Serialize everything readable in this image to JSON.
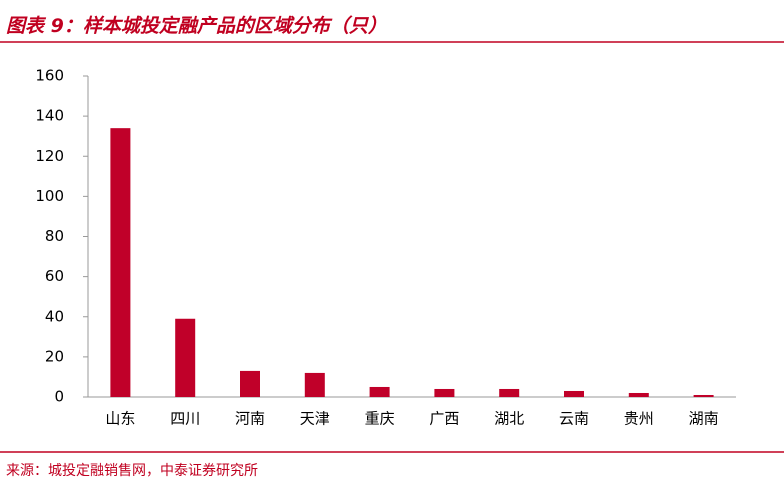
{
  "chart_data": {
    "type": "bar",
    "title": "图表 9：样本城投定融产品的区域分布（只）",
    "source": "来源：城投定融销售网，中泰证券研究所",
    "categories": [
      "山东",
      "四川",
      "河南",
      "天津",
      "重庆",
      "广西",
      "湖北",
      "云南",
      "贵州",
      "湖南"
    ],
    "values": [
      134,
      39,
      13,
      12,
      5,
      4,
      4,
      3,
      2,
      1
    ],
    "color": "#c00029",
    "ylim": [
      0,
      160
    ],
    "yticks": [
      0,
      20,
      40,
      60,
      80,
      100,
      120,
      140,
      160
    ],
    "grid": false
  }
}
